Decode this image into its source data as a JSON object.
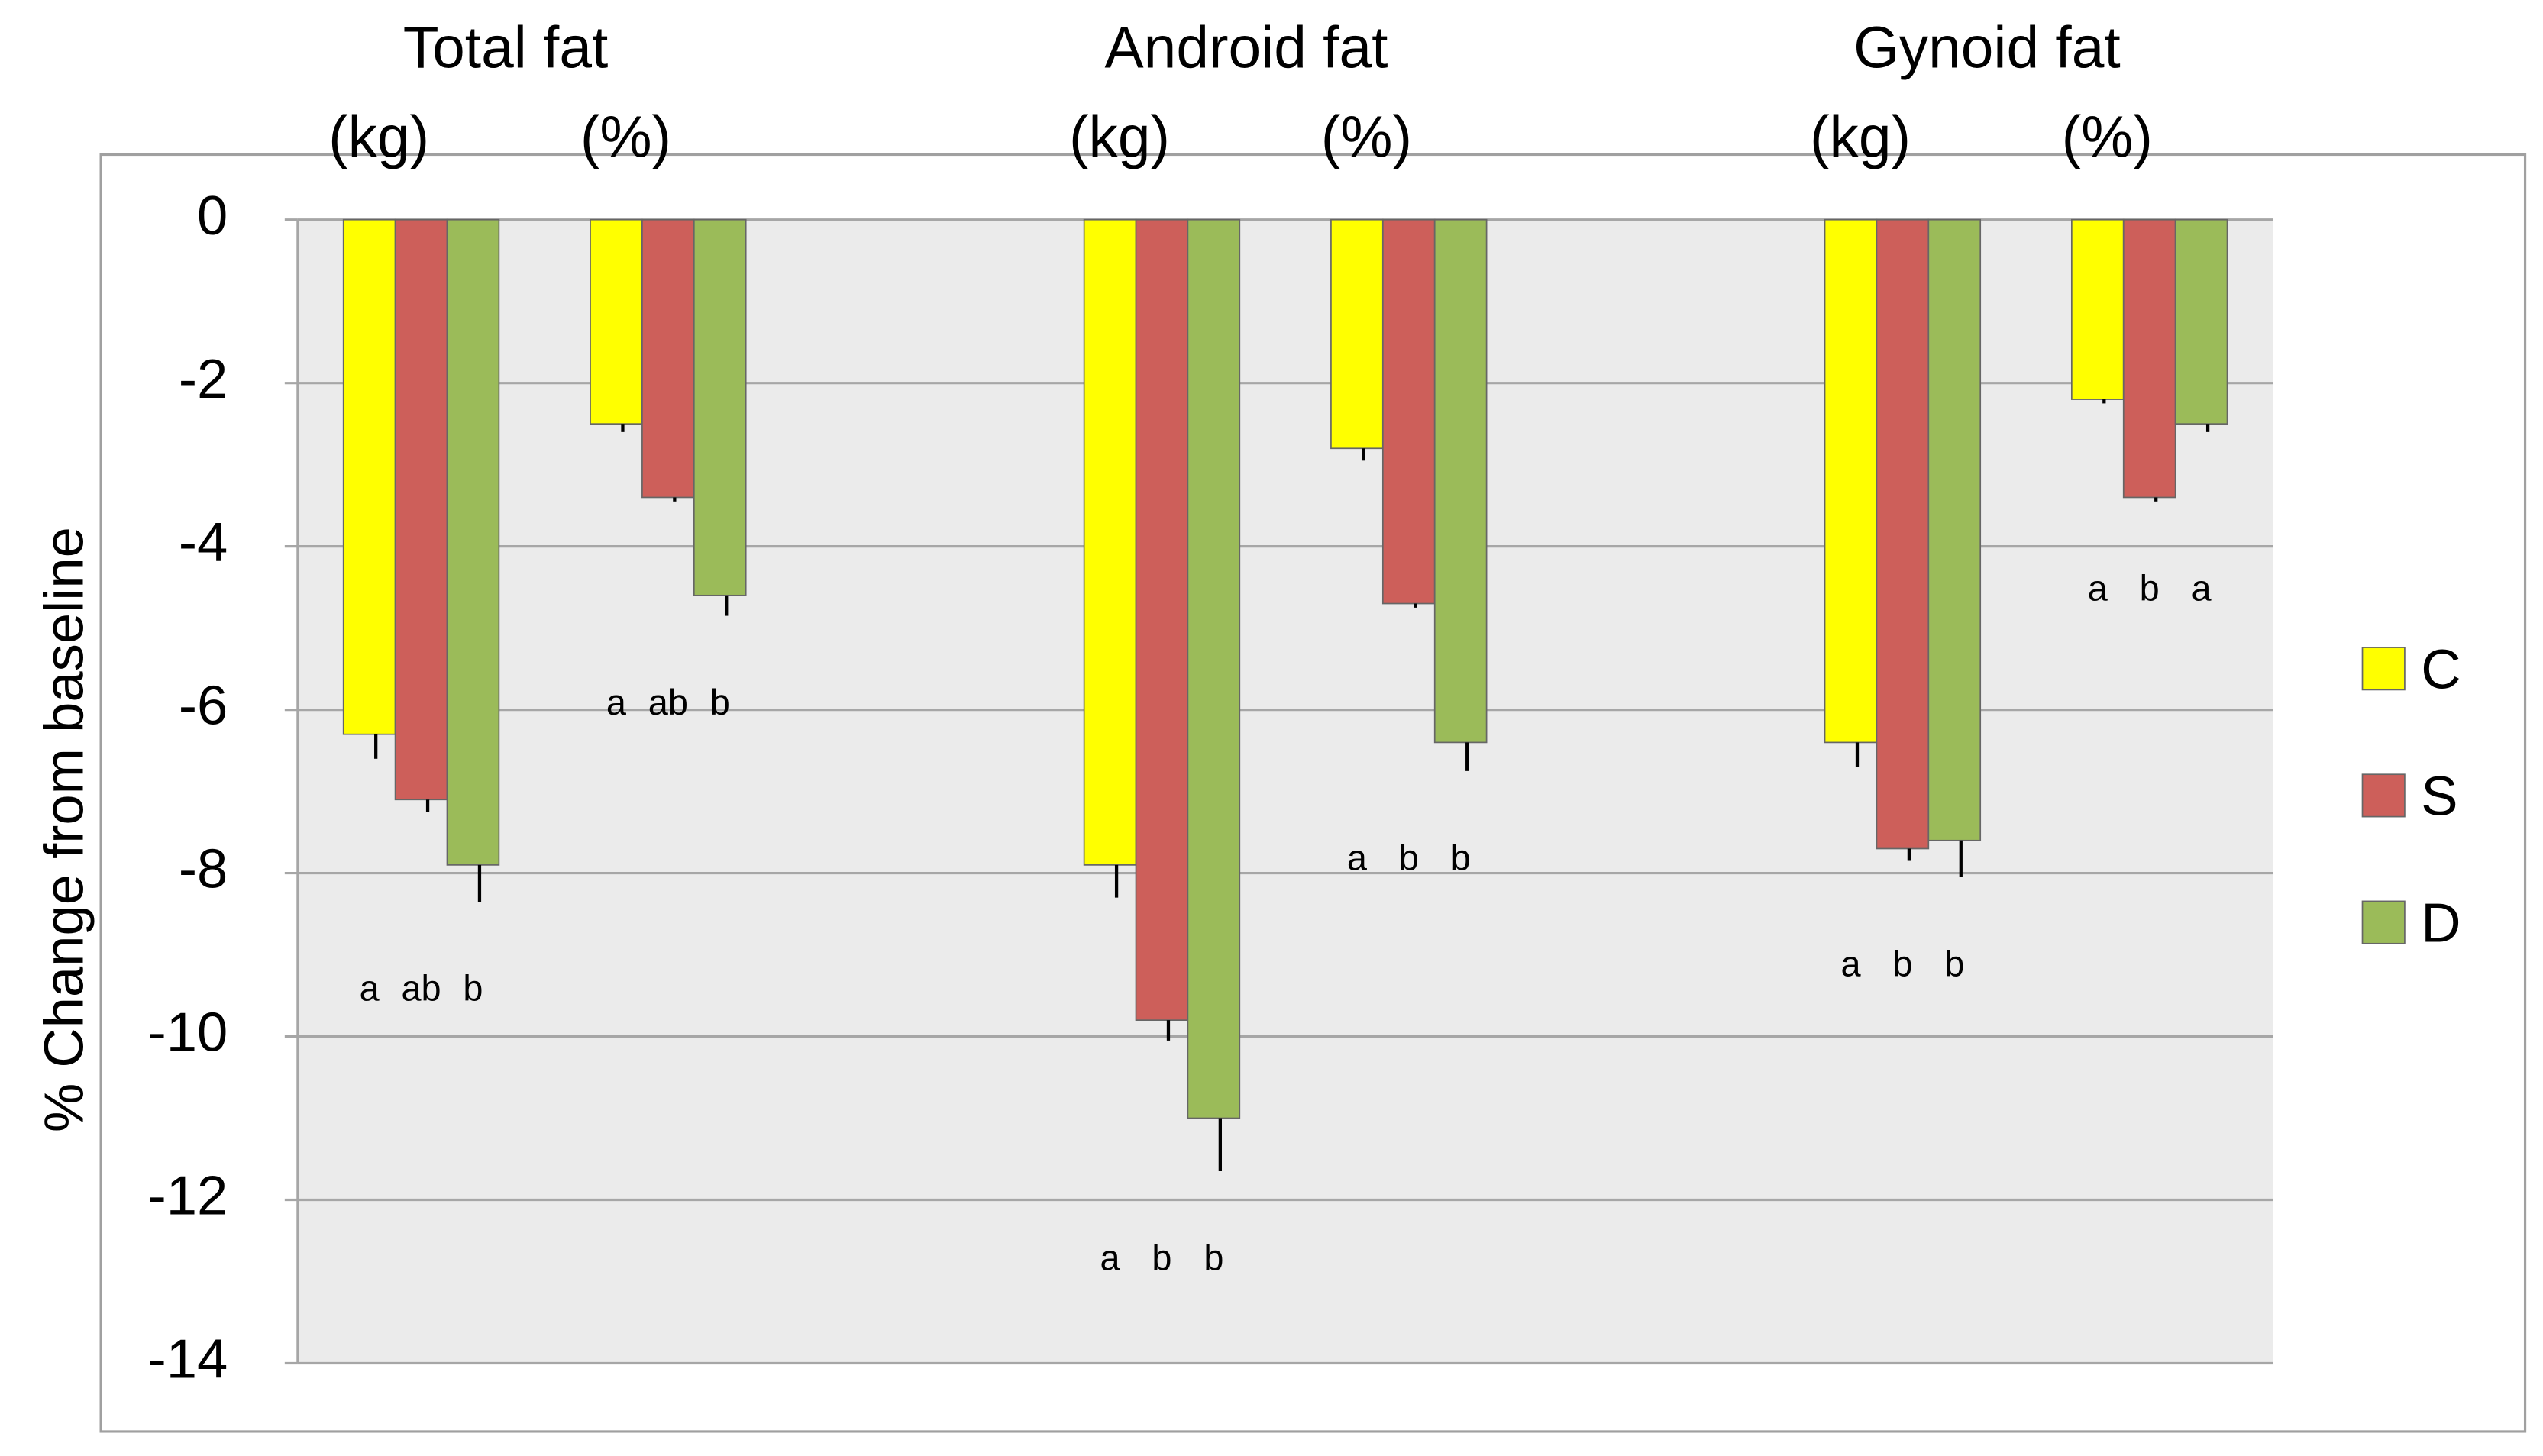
{
  "chart_data": {
    "type": "bar",
    "y_label": "% Change from baseline",
    "groups": [
      "Total fat",
      "Android fat",
      "Gynoid fat"
    ],
    "categories": [
      "(kg)",
      "(%)",
      null,
      "(kg)",
      "(%)",
      null,
      "(kg)",
      "(%)"
    ],
    "series": [
      {
        "name": "C",
        "color": "#ffff00",
        "values": [
          -6.3,
          -2.5,
          null,
          -7.9,
          -2.8,
          null,
          -6.4,
          -2.2
        ],
        "errors": [
          0.3,
          0.1,
          null,
          0.4,
          0.15,
          null,
          0.3,
          0.05
        ],
        "letters": [
          "a",
          "a",
          null,
          "a",
          "a",
          null,
          "a",
          "a"
        ]
      },
      {
        "name": "S",
        "color": "#cd5f5a",
        "values": [
          -7.1,
          -3.4,
          null,
          -9.8,
          -4.7,
          null,
          -7.7,
          -3.4
        ],
        "errors": [
          0.15,
          0.05,
          null,
          0.25,
          0.05,
          null,
          0.15,
          0.05
        ],
        "letters": [
          "ab",
          "ab",
          null,
          "b",
          "b",
          null,
          "b",
          "b"
        ]
      },
      {
        "name": "D",
        "color": "#9bbb59",
        "values": [
          -7.9,
          -4.6,
          null,
          -11.0,
          -6.4,
          null,
          -7.6,
          -2.5
        ],
        "errors": [
          0.45,
          0.25,
          null,
          0.65,
          0.35,
          null,
          0.45,
          0.1
        ],
        "letters": [
          "b",
          "b",
          null,
          "b",
          "b",
          null,
          "b",
          "a"
        ]
      }
    ],
    "ylim": [
      -14,
      0
    ],
    "yticks": [
      0,
      -2,
      -4,
      -6,
      -8,
      -10,
      -12,
      -14
    ],
    "grid": true,
    "legend": "right"
  }
}
